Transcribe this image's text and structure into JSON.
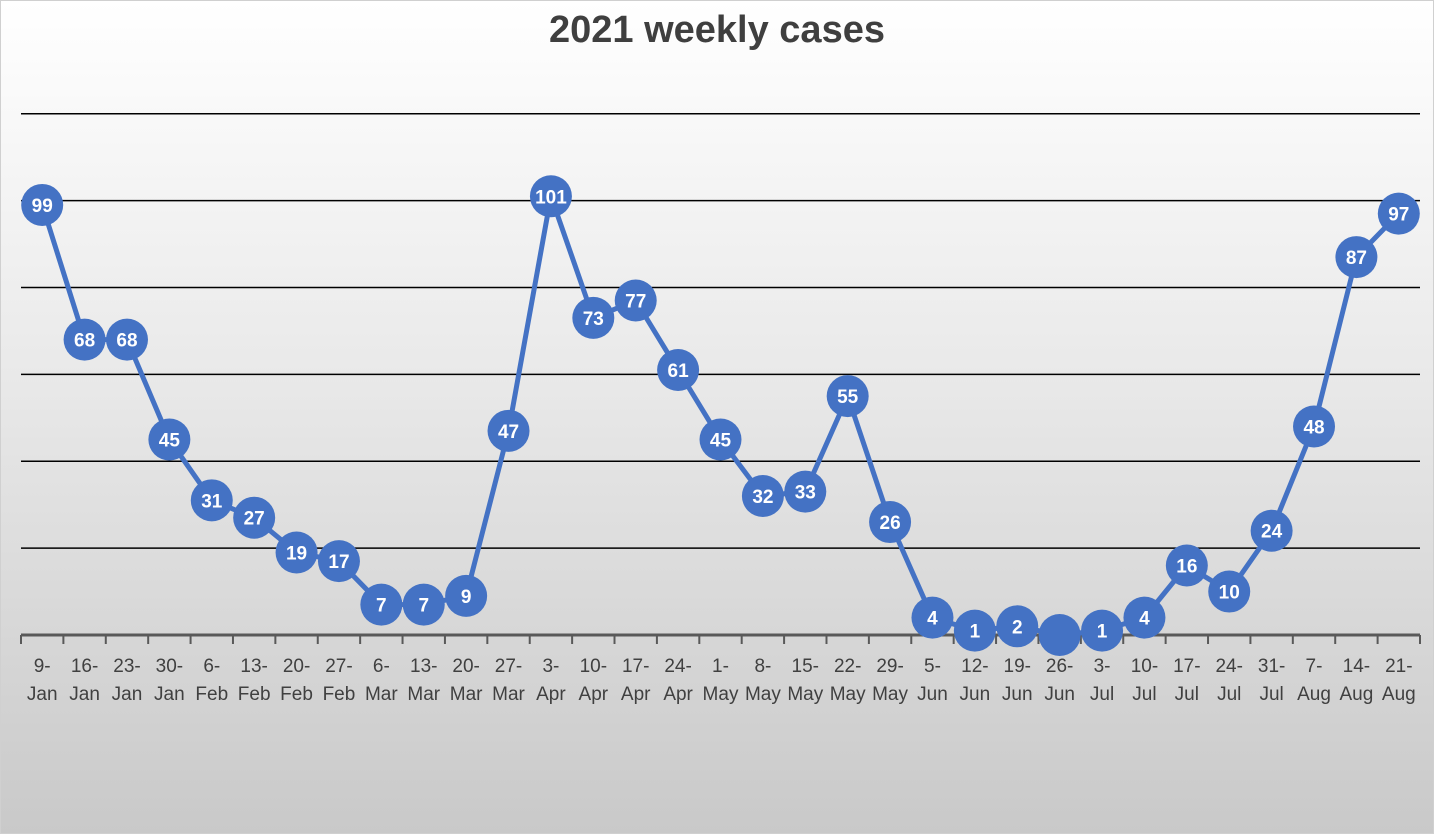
{
  "chart_data": {
    "type": "line",
    "title": "2021 weekly cases",
    "xlabel": "",
    "ylabel": "",
    "ylim": [
      0,
      125
    ],
    "grid": true,
    "legend": "none",
    "categories": [
      [
        "9-",
        "Jan"
      ],
      [
        "16-",
        "Jan"
      ],
      [
        "23-",
        "Jan"
      ],
      [
        "30-",
        "Jan"
      ],
      [
        "6-",
        "Feb"
      ],
      [
        "13-",
        "Feb"
      ],
      [
        "20-",
        "Feb"
      ],
      [
        "27-",
        "Feb"
      ],
      [
        "6-",
        "Mar"
      ],
      [
        "13-",
        "Mar"
      ],
      [
        "20-",
        "Mar"
      ],
      [
        "27-",
        "Mar"
      ],
      [
        "3-",
        "Apr"
      ],
      [
        "10-",
        "Apr"
      ],
      [
        "17-",
        "Apr"
      ],
      [
        "24-",
        "Apr"
      ],
      [
        "1-",
        "May"
      ],
      [
        "8-",
        "May"
      ],
      [
        "15-",
        "May"
      ],
      [
        "22-",
        "May"
      ],
      [
        "29-",
        "May"
      ],
      [
        "5-",
        "Jun"
      ],
      [
        "12-",
        "Jun"
      ],
      [
        "19-",
        "Jun"
      ],
      [
        "26-",
        "Jun"
      ],
      [
        "3-",
        "Jul"
      ],
      [
        "10-",
        "Jul"
      ],
      [
        "17-",
        "Jul"
      ],
      [
        "24-",
        "Jul"
      ],
      [
        "31-",
        "Jul"
      ],
      [
        "7-",
        "Aug"
      ],
      [
        "14-",
        "Aug"
      ],
      [
        "21-",
        "Aug"
      ]
    ],
    "series": [
      {
        "values": [
          99,
          68,
          68,
          45,
          31,
          27,
          19,
          17,
          7,
          7,
          9,
          47,
          101,
          73,
          77,
          61,
          45,
          32,
          33,
          55,
          26,
          4,
          1,
          2,
          0,
          1,
          4,
          16,
          10,
          24,
          48,
          87,
          97
        ],
        "data_labels": [
          "99",
          "68",
          "68",
          "45",
          "31",
          "27",
          "19",
          "17",
          "7",
          "7",
          "9",
          "47",
          "101",
          "73",
          "77",
          "61",
          "45",
          "32",
          "33",
          "55",
          "26",
          "4",
          "1",
          "2",
          "",
          "1",
          "4",
          "16",
          "10",
          "24",
          "48",
          "87",
          "97"
        ],
        "color": "#4472c4"
      }
    ],
    "colors": {
      "line": "#4472c4",
      "grid": "#000000",
      "axis": "#595959",
      "title": "#3f3f3f"
    }
  }
}
